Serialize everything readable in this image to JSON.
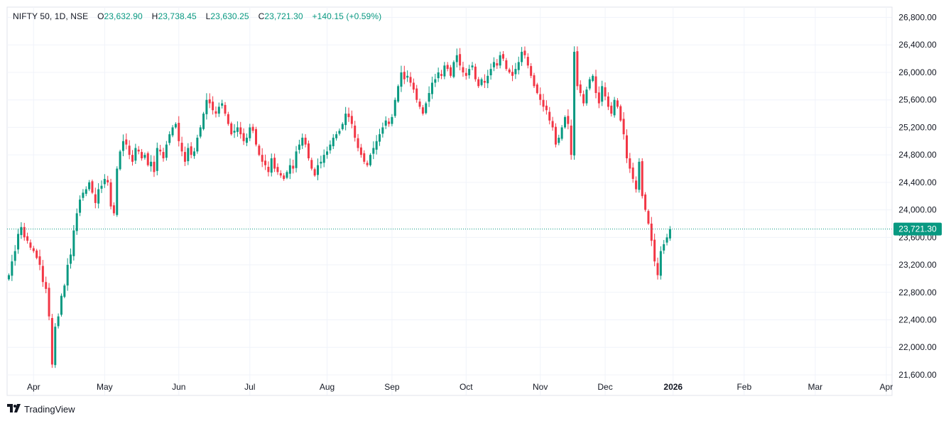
{
  "legend": {
    "symbol": "NIFTY 50, 1D, NSE",
    "o_label": "O",
    "o": "23,632.90",
    "h_label": "H",
    "h": "23,738.45",
    "l_label": "L",
    "l": "23,630.25",
    "c_label": "C",
    "c": "23,721.30",
    "change": "+140.15 (+0.59%)"
  },
  "price_label": "23,721.30",
  "brand": {
    "name": "TradingView",
    "icon": "tradingview-logo-icon"
  },
  "colors": {
    "up": "#089981",
    "down": "#f23645",
    "grid": "#f0f3fa",
    "text": "#131722",
    "axis": "#e0e3eb"
  },
  "chart_data": {
    "type": "candlestick",
    "title": "NIFTY 50, 1D, NSE",
    "ylim": [
      21300,
      26950
    ],
    "y_ticks": [
      "26,800.00",
      "26,400.00",
      "26,000.00",
      "25,600.00",
      "25,200.00",
      "24,800.00",
      "24,400.00",
      "24,000.00",
      "23,600.00",
      "23,200.00",
      "22,800.00",
      "22,400.00",
      "22,000.00",
      "21,600.00"
    ],
    "y_tick_values": [
      26800,
      26400,
      26000,
      25600,
      25200,
      24800,
      24400,
      24000,
      23600,
      23200,
      22800,
      22400,
      22000,
      21600
    ],
    "x_ticks": [
      "Apr",
      "May",
      "Jun",
      "Jul",
      "Aug",
      "Sep",
      "Oct",
      "Nov",
      "Dec",
      "2026",
      "Feb",
      "Mar",
      "Apr"
    ],
    "x_tick_index": [
      8,
      31,
      55,
      78,
      103,
      124,
      148,
      172,
      193,
      215,
      238,
      261,
      284
    ],
    "last_close": 23721.3,
    "close_series": [
      23050,
      23250,
      23400,
      23650,
      23750,
      23600,
      23550,
      23450,
      23400,
      23300,
      23200,
      22950,
      22850,
      22450,
      21750,
      22300,
      22450,
      22750,
      22900,
      23200,
      23350,
      23700,
      23950,
      24150,
      24250,
      24300,
      24400,
      24250,
      24100,
      24300,
      24350,
      24450,
      24400,
      24050,
      23950,
      24600,
      24850,
      25000,
      24950,
      24800,
      24700,
      24900,
      24850,
      24750,
      24800,
      24650,
      24700,
      24550,
      24900,
      24850,
      24750,
      24950,
      25100,
      25200,
      25250,
      25000,
      24850,
      24700,
      24900,
      24800,
      24850,
      25050,
      25200,
      25400,
      25600,
      25550,
      25450,
      25400,
      25500,
      25550,
      25400,
      25250,
      25100,
      25150,
      25200,
      25100,
      25000,
      25050,
      25200,
      25150,
      24950,
      24800,
      24700,
      24650,
      24550,
      24750,
      24600,
      24550,
      24500,
      24450,
      24550,
      24650,
      24600,
      24850,
      24950,
      25050,
      24950,
      24750,
      24600,
      24500,
      24650,
      24700,
      24800,
      24850,
      24950,
      25050,
      25100,
      25150,
      25250,
      25400,
      25350,
      25250,
      25050,
      24900,
      24800,
      24700,
      24650,
      24800,
      24900,
      25000,
      25100,
      25200,
      25300,
      25250,
      25350,
      25600,
      25800,
      26000,
      25900,
      25950,
      25850,
      25750,
      25600,
      25500,
      25400,
      25550,
      25700,
      25850,
      25900,
      26000,
      25950,
      26100,
      26050,
      25950,
      26150,
      26250,
      26100,
      26000,
      25950,
      26050,
      26100,
      25900,
      25800,
      25900,
      25850,
      25950,
      26050,
      26150,
      26100,
      26250,
      26200,
      26050,
      26000,
      25950,
      26050,
      26150,
      26300,
      26250,
      26100,
      25950,
      25800,
      25700,
      25600,
      25500,
      25450,
      25300,
      25200,
      24950,
      25050,
      25200,
      25350,
      25250,
      24800,
      26300,
      25800,
      25700,
      25550,
      25750,
      25900,
      25950,
      25700,
      25550,
      25800,
      25650,
      25500,
      25400,
      25600,
      25500,
      25300,
      25100,
      24750,
      24600,
      24450,
      24300,
      24700,
      24200,
      24000,
      23800,
      23550,
      23250,
      23050,
      23400,
      23500,
      23600,
      23721.3
    ]
  }
}
